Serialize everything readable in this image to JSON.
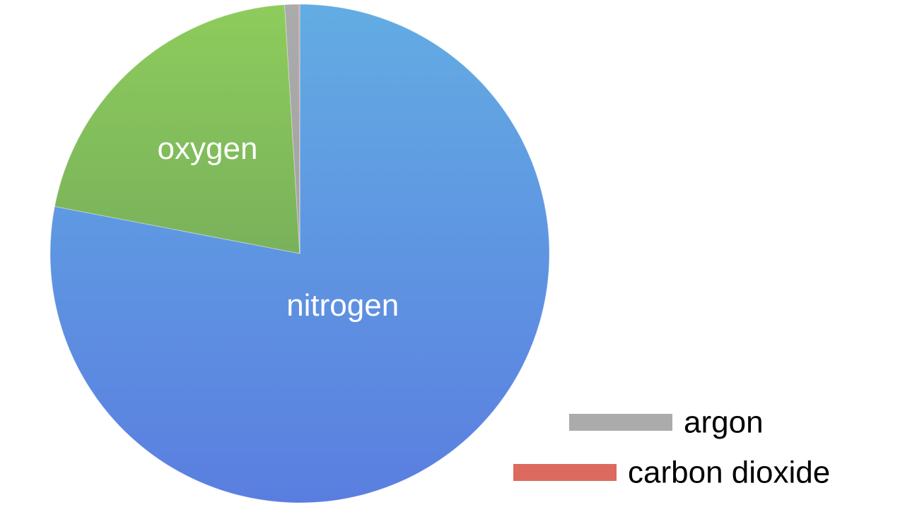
{
  "chart_data": {
    "type": "pie",
    "start_angle_deg": 0,
    "direction": "clockwise",
    "slices": [
      {
        "label": "nitrogen",
        "value": 78.0,
        "color_top": "#63ace3",
        "color_bottom": "#5a7ee0",
        "show_label_on_slice": true
      },
      {
        "label": "oxygen",
        "value": 21.0,
        "color_top": "#8ecc5c",
        "color_bottom": "#64975a",
        "show_label_on_slice": true
      },
      {
        "label": "argon",
        "value": 0.93,
        "color_top": "#ababab",
        "color_bottom": "#9a9a9a",
        "show_label_on_slice": false
      },
      {
        "label": "carbon dioxide",
        "value": 0.04,
        "color_top": "#dd6a5e",
        "color_bottom": "#d45a50",
        "show_label_on_slice": false
      }
    ],
    "legend": {
      "placement": "bottom-right",
      "entries": [
        {
          "label": "argon",
          "color": "#ababab"
        },
        {
          "label": "carbon dioxide",
          "color": "#dd6a5e"
        }
      ]
    }
  }
}
